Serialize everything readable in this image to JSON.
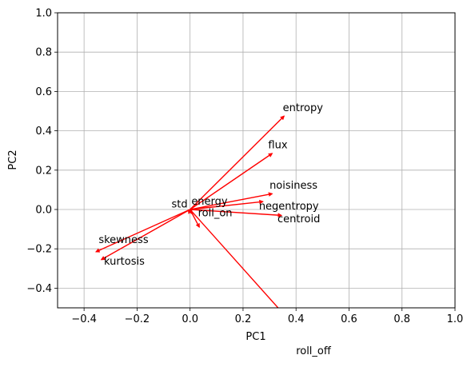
{
  "chart_data": {
    "type": "biplot",
    "xlabel": "PC1",
    "ylabel": "PC2",
    "xlim": [
      -0.5,
      1.0
    ],
    "ylim": [
      -0.5,
      1.0
    ],
    "xticks": [
      -0.4,
      -0.2,
      0.0,
      0.2,
      0.4,
      0.6,
      0.8,
      1.0
    ],
    "yticks": [
      -0.4,
      -0.2,
      0.0,
      0.2,
      0.4,
      0.6,
      0.8,
      1.0
    ],
    "xtick_labels": [
      "−0.4",
      "−0.2",
      "0.0",
      "0.2",
      "0.4",
      "0.6",
      "0.8",
      "1.0"
    ],
    "ytick_labels": [
      "−0.4",
      "−0.2",
      "0.0",
      "0.2",
      "0.4",
      "0.6",
      "0.8",
      "1.0"
    ],
    "grid": true,
    "vector_color": "#ff0000",
    "vectors": [
      {
        "name": "entropy",
        "x": 0.355,
        "y": 0.475,
        "label_x": 0.35,
        "label_y": 0.5
      },
      {
        "name": "flux",
        "x": 0.31,
        "y": 0.285,
        "label_x": 0.295,
        "label_y": 0.31
      },
      {
        "name": "noisiness",
        "x": 0.31,
        "y": 0.08,
        "label_x": 0.3,
        "label_y": 0.105
      },
      {
        "name": "negentropy",
        "x": 0.275,
        "y": 0.04,
        "label_x": 0.26,
        "label_y": 0.0
      },
      {
        "name": "centroid",
        "x": 0.345,
        "y": -0.03,
        "label_x": 0.33,
        "label_y": -0.065
      },
      {
        "name": "skewness",
        "x": -0.355,
        "y": -0.215,
        "label_x": -0.345,
        "label_y": -0.17
      },
      {
        "name": "kurtosis",
        "x": -0.335,
        "y": -0.255,
        "label_x": -0.325,
        "label_y": -0.28
      },
      {
        "name": "std",
        "x": -0.005,
        "y": -0.02,
        "label_x": -0.07,
        "label_y": 0.01
      },
      {
        "name": "energy",
        "x": 0.005,
        "y": -0.02,
        "label_x": 0.005,
        "label_y": 0.025
      },
      {
        "name": "roll_on",
        "x": 0.035,
        "y": -0.09,
        "label_x": 0.03,
        "label_y": -0.035
      },
      {
        "name": "roll_off",
        "x": 0.495,
        "y": -0.745,
        "label_x": 0.4,
        "label_y": -0.735
      }
    ]
  }
}
